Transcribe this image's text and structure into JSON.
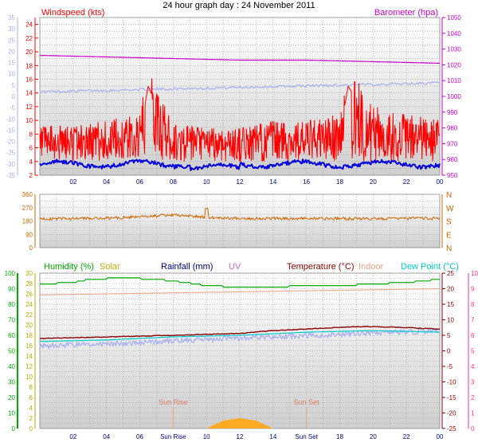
{
  "title": "24 hour graph day : 24 November 2011",
  "colors": {
    "windspeed": "#ff0000",
    "windspeed_avg": "#0000dd",
    "barometer": "#cc00cc",
    "temp_faint": "#a8b0f0",
    "direction": "#cc6600",
    "humidity": "#00aa00",
    "solar": "#bbaa00",
    "rainfall": "#000080",
    "uv": "#cc66cc",
    "temperature": "#880000",
    "indoor": "#f0a080",
    "dewpoint": "#00cccc",
    "pink_axis": "#ff3377",
    "sun": "#ffaa22"
  },
  "chart_data": [
    {
      "type": "line",
      "panel": "wind",
      "title": "24 hour graph day : 24 November 2011",
      "legend": [
        "Windspeed (kts)",
        "Barometer (hpa)"
      ],
      "x_tick_labels": [
        "02",
        "04",
        "06",
        "08",
        "10",
        "12",
        "14",
        "16",
        "18",
        "20",
        "22",
        "00"
      ],
      "y_left_ticks": [
        "2",
        "4",
        "6",
        "8",
        "10",
        "12",
        "14",
        "16",
        "18",
        "20",
        "22",
        "24"
      ],
      "y_left2_ticks": [
        "-35",
        "-30",
        "-25",
        "-20",
        "-15",
        "-10",
        "-5",
        "0",
        "5",
        "10",
        "15",
        "20",
        "25",
        "30",
        "35"
      ],
      "y_right_ticks": [
        "950",
        "960",
        "970",
        "980",
        "990",
        "1000",
        "1010",
        "1020",
        "1030",
        "1040",
        "1050"
      ],
      "ylim_left": [
        2,
        25
      ],
      "ylim_right": [
        950,
        1050
      ],
      "series": [
        {
          "name": "Windspeed (kts)",
          "x": [
            0,
            2,
            4,
            6,
            6.5,
            8,
            10,
            12,
            14,
            16,
            18,
            18.5,
            20,
            22,
            24
          ],
          "y": [
            6,
            6.5,
            7,
            8,
            15,
            6.5,
            6,
            6,
            7,
            7,
            8,
            15,
            9,
            8,
            7
          ]
        },
        {
          "name": "Barometer (hpa)",
          "x": [
            0,
            4,
            8,
            12,
            16,
            20,
            24
          ],
          "y": [
            1026,
            1025,
            1024,
            1023,
            1023,
            1022,
            1021
          ]
        }
      ]
    },
    {
      "type": "line",
      "panel": "direction",
      "y_ticks": [
        "0",
        "90",
        "180",
        "270",
        "360"
      ],
      "y_right_labels": [
        "N",
        "W",
        "S",
        "E",
        "N"
      ],
      "ylim": [
        0,
        360
      ],
      "series": [
        {
          "x": [
            0,
            4,
            8,
            10,
            12,
            16,
            20,
            24
          ],
          "y": [
            195,
            198,
            220,
            205,
            198,
            197,
            196,
            198
          ]
        }
      ]
    },
    {
      "type": "line",
      "panel": "temperature",
      "legend": [
        "Humidity (%)",
        "Solar",
        "Rainfall (mm)",
        "UV",
        "Temperature (°C)",
        "Indoor",
        "Dew Point (°C)"
      ],
      "y_humidity_ticks": [
        "0",
        "10",
        "20",
        "30",
        "40",
        "50",
        "60",
        "70",
        "80",
        "90",
        "100"
      ],
      "y_left2_ticks": [
        "0",
        "2",
        "4",
        "6",
        "8",
        "10",
        "12",
        "14",
        "16",
        "18",
        "20",
        "22",
        "24",
        "26",
        "28",
        "30"
      ],
      "y_right_ticks": [
        "-25",
        "-20",
        "-15",
        "-10",
        "-5",
        "0",
        "5",
        "10",
        "15",
        "20",
        "25"
      ],
      "y_right2_ticks": [
        "0",
        "1",
        "2",
        "3",
        "4",
        "5",
        "6",
        "7",
        "8",
        "9",
        "10"
      ],
      "annotations": [
        "Sun Rise",
        "Sun Set"
      ],
      "x_tick_labels": [
        "02",
        "04",
        "06",
        "Sun Rise",
        "10",
        "12",
        "14",
        "Sun Set",
        "18",
        "20",
        "22",
        "00"
      ],
      "ylim_humidity": [
        0,
        100
      ],
      "ylim_temperature": [
        -25,
        25
      ],
      "series": [
        {
          "name": "Humidity (%)",
          "x": [
            0,
            2,
            3,
            5,
            7,
            8,
            10,
            12,
            14,
            16,
            18,
            20,
            22,
            24
          ],
          "y": [
            93,
            94,
            96,
            97,
            96,
            95,
            92,
            91,
            91,
            92,
            92,
            93,
            94,
            96
          ]
        },
        {
          "name": "Temperature (°C)",
          "x": [
            0,
            4,
            8,
            12,
            14,
            16,
            18,
            20,
            22,
            24
          ],
          "y": [
            4,
            4.5,
            5,
            5.6,
            6.5,
            7,
            7.6,
            7.8,
            7.5,
            7
          ]
        },
        {
          "name": "Indoor",
          "x": [
            0,
            12,
            24
          ],
          "y": [
            18,
            19,
            20
          ]
        },
        {
          "name": "Dew Point (°C)",
          "x": [
            0,
            4,
            8,
            12,
            16,
            20,
            24
          ],
          "y": [
            3,
            3.5,
            4.5,
            5,
            6,
            6.5,
            6
          ]
        },
        {
          "name": "Solar",
          "x": [
            10,
            11,
            12,
            13,
            14
          ],
          "y": [
            0,
            1.5,
            2,
            1.5,
            0
          ]
        }
      ]
    }
  ]
}
